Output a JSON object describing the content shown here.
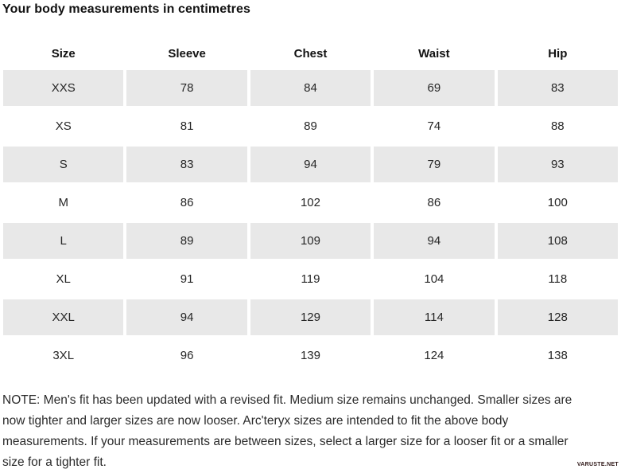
{
  "title": "Your body measurements in centimetres",
  "table": {
    "headers": [
      "Size",
      "Sleeve",
      "Chest",
      "Waist",
      "Hip"
    ],
    "rows": [
      {
        "size": "XXS",
        "sleeve": "78",
        "chest": "84",
        "waist": "69",
        "hip": "83"
      },
      {
        "size": "XS",
        "sleeve": "81",
        "chest": "89",
        "waist": "74",
        "hip": "88"
      },
      {
        "size": "S",
        "sleeve": "83",
        "chest": "94",
        "waist": "79",
        "hip": "93"
      },
      {
        "size": "M",
        "sleeve": "86",
        "chest": "102",
        "waist": "86",
        "hip": "100"
      },
      {
        "size": "L",
        "sleeve": "89",
        "chest": "109",
        "waist": "94",
        "hip": "108"
      },
      {
        "size": "XL",
        "sleeve": "91",
        "chest": "119",
        "waist": "104",
        "hip": "118"
      },
      {
        "size": "XXL",
        "sleeve": "94",
        "chest": "129",
        "waist": "114",
        "hip": "128"
      },
      {
        "size": "3XL",
        "sleeve": "96",
        "chest": "139",
        "waist": "124",
        "hip": "138"
      }
    ]
  },
  "note_lines": [
    "NOTE: Men's fit has been updated with a revised fit. Medium size remains unchanged. Smaller sizes are",
    "now tighter and larger sizes are now looser. Arc'teryx sizes are intended to fit the above body",
    "measurements. If your measurements are between sizes, select a larger size for a looser fit or a smaller",
    "size for a tighter fit."
  ],
  "watermark": "VARUSTE.NET",
  "colors": {
    "shaded_row": "#e8e8e8",
    "text": "#121212",
    "watermark": "#2d1616"
  }
}
